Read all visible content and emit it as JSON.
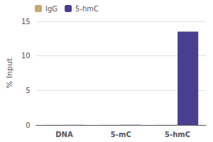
{
  "chart_data": {
    "type": "bar",
    "ylabel": "% Input",
    "categories": [
      "DNA",
      "5-mC",
      "5-hmC"
    ],
    "series": [
      {
        "name": "IgG",
        "color": "#c8a870",
        "values": [
          0.02,
          0.02,
          0.02
        ]
      },
      {
        "name": "5-hmC",
        "color": "#4a3f8f",
        "values": [
          0.02,
          0.02,
          13.5
        ]
      }
    ],
    "ylim": [
      0,
      15
    ],
    "yticks": [
      0,
      5,
      10,
      15
    ],
    "grid": true,
    "legend": "upper left"
  }
}
